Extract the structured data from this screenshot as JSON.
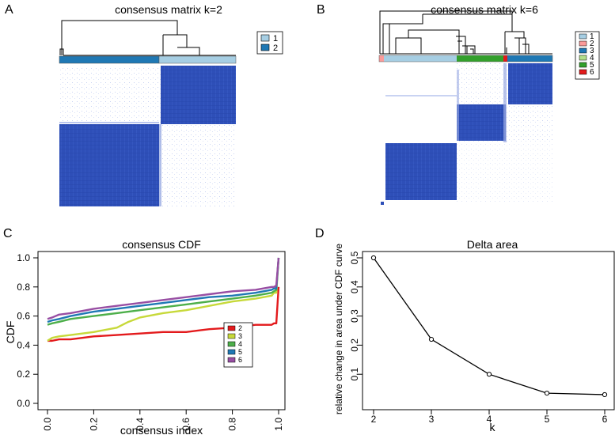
{
  "panels": {
    "A": {
      "letter": "A",
      "title": "consensus matrix k=2",
      "legend": [
        {
          "label": "1",
          "color": "#a6cee3"
        },
        {
          "label": "2",
          "color": "#1f78b4"
        }
      ]
    },
    "B": {
      "letter": "B",
      "title": "consensus matrix k=6",
      "legend": [
        {
          "label": "1",
          "color": "#a6cee3"
        },
        {
          "label": "2",
          "color": "#fb9a99"
        },
        {
          "label": "3",
          "color": "#1f78b4"
        },
        {
          "label": "4",
          "color": "#b2df8a"
        },
        {
          "label": "5",
          "color": "#33a02c"
        },
        {
          "label": "6",
          "color": "#e31a1c"
        }
      ]
    },
    "C": {
      "letter": "C"
    },
    "D": {
      "letter": "D"
    }
  },
  "colors": {
    "matrix_blue": "#2e4fb8",
    "matrix_light": "#c9d3f2"
  },
  "chart_data": [
    {
      "id": "cdf",
      "type": "line",
      "title": "consensus CDF",
      "xlabel": "consensus index",
      "ylabel": "CDF",
      "xlim": [
        0,
        1
      ],
      "ylim": [
        0,
        1
      ],
      "xticks": [
        "0.0",
        "0.2",
        "0.4",
        "0.6",
        "0.8",
        "1.0"
      ],
      "yticks": [
        "0.0",
        "0.2",
        "0.4",
        "0.6",
        "0.8",
        "1.0"
      ],
      "legend_position": "right",
      "series": [
        {
          "name": "2",
          "color": "#e31a1c",
          "x": [
            0,
            0.02,
            0.05,
            0.1,
            0.2,
            0.3,
            0.4,
            0.5,
            0.6,
            0.7,
            0.8,
            0.9,
            0.97,
            0.98,
            0.99,
            1.0
          ],
          "y": [
            0.43,
            0.43,
            0.44,
            0.44,
            0.46,
            0.47,
            0.48,
            0.49,
            0.49,
            0.51,
            0.52,
            0.54,
            0.54,
            0.55,
            0.55,
            0.8
          ]
        },
        {
          "name": "3",
          "color": "#c7d93a",
          "x": [
            0,
            0.02,
            0.05,
            0.1,
            0.2,
            0.3,
            0.35,
            0.4,
            0.5,
            0.6,
            0.7,
            0.8,
            0.9,
            0.97,
            0.98,
            0.99,
            1.0
          ],
          "y": [
            0.43,
            0.45,
            0.46,
            0.47,
            0.49,
            0.52,
            0.56,
            0.59,
            0.62,
            0.64,
            0.67,
            0.7,
            0.72,
            0.74,
            0.76,
            0.76,
            1.0
          ]
        },
        {
          "name": "4",
          "color": "#4daf4a",
          "x": [
            0,
            0.02,
            0.05,
            0.1,
            0.2,
            0.3,
            0.4,
            0.5,
            0.6,
            0.7,
            0.8,
            0.9,
            0.97,
            0.98,
            0.99,
            1.0
          ],
          "y": [
            0.54,
            0.55,
            0.56,
            0.58,
            0.6,
            0.62,
            0.64,
            0.66,
            0.68,
            0.7,
            0.72,
            0.74,
            0.76,
            0.77,
            0.78,
            1.0
          ]
        },
        {
          "name": "5",
          "color": "#1f78b4",
          "x": [
            0,
            0.02,
            0.05,
            0.1,
            0.2,
            0.3,
            0.4,
            0.5,
            0.6,
            0.7,
            0.8,
            0.9,
            0.97,
            0.98,
            0.99,
            1.0
          ],
          "y": [
            0.56,
            0.57,
            0.58,
            0.6,
            0.63,
            0.65,
            0.67,
            0.69,
            0.71,
            0.73,
            0.74,
            0.76,
            0.78,
            0.79,
            0.79,
            1.0
          ]
        },
        {
          "name": "6",
          "color": "#984ea3",
          "x": [
            0,
            0.02,
            0.05,
            0.1,
            0.2,
            0.3,
            0.4,
            0.5,
            0.6,
            0.7,
            0.8,
            0.9,
            0.97,
            0.98,
            0.99,
            1.0
          ],
          "y": [
            0.58,
            0.59,
            0.61,
            0.62,
            0.65,
            0.67,
            0.69,
            0.71,
            0.73,
            0.75,
            0.77,
            0.78,
            0.8,
            0.8,
            0.81,
            1.0
          ]
        }
      ]
    },
    {
      "id": "delta",
      "type": "line",
      "title": "Delta area",
      "xlabel": "k",
      "ylabel": "relative change in area under CDF curve",
      "xlim": [
        2,
        6
      ],
      "ylim": [
        0,
        0.5
      ],
      "xticks": [
        "2",
        "3",
        "4",
        "5",
        "6"
      ],
      "yticks": [
        "0.1",
        "0.2",
        "0.3",
        "0.4",
        "0.5"
      ],
      "x": [
        2,
        3,
        4,
        5,
        6
      ],
      "y": [
        0.5,
        0.22,
        0.1,
        0.035,
        0.03
      ]
    }
  ]
}
